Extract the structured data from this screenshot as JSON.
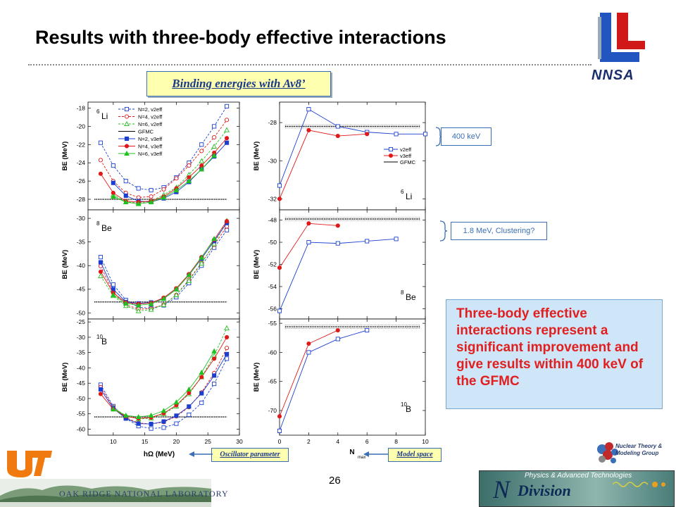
{
  "slide": {
    "title": "Results with three-body effective interactions",
    "page_number": "26",
    "binding_label": "Binding energies with Av8’",
    "osc_label": "Oscillator parameter",
    "model_label": "Model space",
    "note_400": "400 keV",
    "note_clustering": "1.8 MeV, Clustering?",
    "summary": "Three-body effective interactions represent a significant improvement and give results within 400 keV of the GFMC"
  },
  "logos": {
    "nnsa": "NNSA",
    "ornl": "OAK RIDGE NATIONAL LABORATORY",
    "ntmg": "Nuclear Theory & Modeling Group",
    "ndiv_top": "Physics & Advanced Technologies",
    "ndiv_n": "N",
    "ndiv_word": "Division"
  },
  "left_axis": {
    "xlabel": "hΩ (MeV)",
    "xticks": [
      "10",
      "15",
      "20",
      "25",
      "30"
    ]
  },
  "right_axis": {
    "xlabel": "N",
    "xlabel_sub": "max",
    "xticks": [
      "0",
      "2",
      "4",
      "6",
      "8",
      "10"
    ]
  },
  "legend_left": [
    "N=2, v2eff",
    "N=4, v2eff",
    "N=6, v2eff",
    "GFMC",
    "N=2, v3eff",
    "N=4, v3eff",
    "N=6, v3eff"
  ],
  "legend_right": [
    "v2eff",
    "v3eff",
    "GFMC"
  ],
  "colors": {
    "blue": "#1a3fd0",
    "red": "#e01818",
    "green": "#20c020",
    "summary_text": "#e02020"
  },
  "chart_data": [
    {
      "type": "line",
      "nucleus": "6Li",
      "ylabel": "BE (MeV)",
      "xlabel": "hΩ (MeV)",
      "xlim": [
        6,
        30
      ],
      "ylim": [
        -29,
        -17.5
      ],
      "yticks": [
        -18,
        -20,
        -22,
        -24,
        -26,
        -28
      ],
      "gfmc": -28,
      "series": [
        {
          "name": "N=2, v2eff",
          "color": "#1a3fd0",
          "dash": true,
          "marker": "open-square",
          "x": [
            8,
            10,
            12,
            14,
            16,
            18,
            20,
            22,
            24,
            26,
            28
          ],
          "y": [
            -21.8,
            -24.3,
            -26,
            -26.8,
            -27,
            -26.7,
            -25.6,
            -24,
            -22,
            -20,
            -17.8
          ]
        },
        {
          "name": "N=4, v2eff",
          "color": "#e01818",
          "dash": true,
          "marker": "open-circle",
          "x": [
            8,
            10,
            12,
            14,
            16,
            18,
            20,
            22,
            24,
            26,
            28
          ],
          "y": [
            -23.7,
            -26,
            -27.3,
            -27.8,
            -27.7,
            -26.9,
            -25.7,
            -24.3,
            -22.7,
            -21.2,
            -19.3
          ]
        },
        {
          "name": "N=6, v2eff",
          "color": "#20c020",
          "dash": true,
          "marker": "open-triangle",
          "x": [
            10,
            12,
            14,
            16,
            18,
            20,
            22,
            24,
            26,
            28
          ],
          "y": [
            -27.5,
            -28.3,
            -28.4,
            -28.2,
            -27.5,
            -26.7,
            -25.3,
            -23.8,
            -22.2,
            -20.4
          ]
        },
        {
          "name": "N=2, v3eff",
          "color": "#1a3fd0",
          "dash": false,
          "marker": "filled-square",
          "x": [
            10,
            12,
            14,
            16,
            18,
            20,
            22,
            24,
            26,
            28
          ],
          "y": [
            -26.2,
            -27.6,
            -28.2,
            -28.3,
            -27.9,
            -27.2,
            -26.1,
            -24.7,
            -23.3,
            -21.8
          ]
        },
        {
          "name": "N=4, v3eff",
          "color": "#e01818",
          "dash": false,
          "marker": "filled-circle",
          "x": [
            8,
            10,
            12,
            14,
            16,
            18,
            20,
            22,
            24,
            26,
            28
          ],
          "y": [
            -25.2,
            -27.3,
            -28.2,
            -28.3,
            -28.2,
            -27.7,
            -26.8,
            -25.6,
            -24.3,
            -22.9,
            -21.3
          ]
        },
        {
          "name": "N=6, v3eff",
          "color": "#20c020",
          "dash": false,
          "marker": "filled-triangle",
          "x": [
            10,
            12,
            14,
            16,
            18,
            20,
            22,
            24,
            26
          ],
          "y": [
            -27.7,
            -28.3,
            -28.5,
            -28.3,
            -27.8,
            -27,
            -26,
            -24.7,
            -23.2
          ]
        }
      ]
    },
    {
      "type": "line",
      "nucleus": "8Be",
      "ylabel": "BE (MeV)",
      "xlabel": "hΩ (MeV)",
      "xlim": [
        6,
        30
      ],
      "ylim": [
        -51,
        -28.5
      ],
      "yticks": [
        -30,
        -35,
        -40,
        -45,
        -50
      ],
      "gfmc": -47.7,
      "series": [
        {
          "name": "N=2, v2eff",
          "color": "#1a3fd0",
          "dash": true,
          "marker": "open-square",
          "x": [
            8,
            10,
            12,
            14,
            16,
            18,
            20,
            22,
            24,
            26,
            28
          ],
          "y": [
            -38.2,
            -44,
            -47.3,
            -48.8,
            -49,
            -48.4,
            -46.7,
            -43.7,
            -40,
            -36.2,
            -32.5
          ]
        },
        {
          "name": "N=4, v2eff",
          "color": "#e01818",
          "dash": true,
          "marker": "open-circle",
          "x": [
            8,
            10,
            12,
            14,
            16,
            18,
            20,
            22,
            24,
            26,
            28
          ],
          "y": [
            -40.1,
            -45.6,
            -48.3,
            -49.2,
            -49.1,
            -48.3,
            -46.2,
            -43,
            -39.4,
            -35.6,
            -31.7
          ]
        },
        {
          "name": "N=6, v2eff",
          "color": "#20c020",
          "dash": true,
          "marker": "open-triangle",
          "x": [
            8,
            10,
            12,
            14,
            16,
            18,
            20,
            22,
            24,
            26,
            28
          ],
          "y": [
            -42.2,
            -46.4,
            -48.5,
            -49.6,
            -49.3,
            -48.3,
            -46.2,
            -43.2,
            -39.5,
            -35.4,
            -30.5
          ]
        },
        {
          "name": "N=2, v3eff",
          "color": "#1a3fd0",
          "dash": false,
          "marker": "filled-square",
          "x": [
            8,
            10,
            12,
            14,
            16,
            18,
            20,
            22,
            24,
            26,
            28
          ],
          "y": [
            -39.3,
            -45,
            -47.7,
            -48,
            -47.8,
            -47,
            -45,
            -42,
            -38.5,
            -34.8,
            -31
          ]
        },
        {
          "name": "N=4, v3eff",
          "color": "#e01818",
          "dash": false,
          "marker": "filled-circle",
          "x": [
            8,
            10,
            12,
            14,
            16,
            18,
            20,
            22,
            24,
            26,
            28
          ],
          "y": [
            -41.3,
            -45.8,
            -47.8,
            -48.1,
            -47.9,
            -46.8,
            -44.8,
            -41.8,
            -38.2,
            -34.5,
            -30.6
          ]
        },
        {
          "name": "N=6, v3eff",
          "color": "#20c020",
          "dash": false,
          "marker": "filled-triangle",
          "x": [
            10,
            12,
            14,
            16,
            18,
            20,
            22,
            24,
            26
          ],
          "y": [
            -46.2,
            -48,
            -48.4,
            -48.1,
            -47,
            -45,
            -42,
            -38.3,
            -34.3
          ]
        }
      ]
    },
    {
      "type": "line",
      "nucleus": "10B",
      "ylabel": "BE (MeV)",
      "xlabel": "hΩ (MeV)",
      "xlim": [
        6,
        30
      ],
      "ylim": [
        -61.5,
        -24.5
      ],
      "yticks": [
        -25,
        -30,
        -35,
        -40,
        -45,
        -50,
        -55,
        -60
      ],
      "gfmc": -56,
      "series": [
        {
          "name": "N=2, v2eff",
          "color": "#1a3fd0",
          "dash": true,
          "marker": "open-square",
          "x": [
            8,
            10,
            12,
            14,
            16,
            18,
            20,
            22,
            24,
            26,
            28
          ],
          "y": [
            -45.5,
            -52.5,
            -56.5,
            -59,
            -59.8,
            -59.5,
            -58.2,
            -55.3,
            -51.4,
            -45.2,
            -37
          ]
        },
        {
          "name": "N=4, v2eff",
          "color": "#e01818",
          "dash": true,
          "marker": "open-circle",
          "x": [
            8,
            10,
            12,
            14,
            16,
            18,
            20,
            22,
            24,
            26,
            28
          ],
          "y": [
            -46.3,
            -52.8,
            -56.2,
            -58,
            -58.3,
            -57.7,
            -55.8,
            -52.8,
            -48,
            -41.7,
            -33.5
          ]
        },
        {
          "name": "N=6, v2eff",
          "color": "#20c020",
          "dash": true,
          "marker": "open-triangle",
          "x": [
            10,
            12,
            14,
            16,
            18,
            20,
            22,
            24,
            26,
            28
          ],
          "y": [
            -53,
            -55.6,
            -56.7,
            -56.4,
            -55,
            -52.5,
            -48.5,
            -43,
            -36,
            -27
          ]
        },
        {
          "name": "N=2, v3eff",
          "color": "#1a3fd0",
          "dash": false,
          "marker": "filled-square",
          "x": [
            8,
            10,
            12,
            14,
            16,
            18,
            20,
            22,
            24,
            26,
            28
          ],
          "y": [
            -47,
            -53.2,
            -56.5,
            -58.2,
            -58.3,
            -57.5,
            -55.6,
            -52.6,
            -48.3,
            -42.5,
            -35.5
          ]
        },
        {
          "name": "N=4, v3eff",
          "color": "#e01818",
          "dash": false,
          "marker": "filled-circle",
          "x": [
            8,
            10,
            12,
            14,
            16,
            18,
            20,
            22,
            24,
            26,
            28
          ],
          "y": [
            -48.5,
            -53.5,
            -55.8,
            -56.5,
            -56.2,
            -54.8,
            -52.2,
            -48.2,
            -43,
            -37,
            -30
          ]
        },
        {
          "name": "N=6, v3eff",
          "color": "#20c020",
          "dash": false,
          "marker": "filled-triangle",
          "x": [
            10,
            12,
            14,
            16,
            18,
            20,
            22,
            24,
            26
          ],
          "y": [
            -53.5,
            -55.5,
            -56,
            -55.5,
            -54,
            -51.2,
            -47,
            -41.5,
            -34.5
          ]
        }
      ]
    },
    {
      "type": "line",
      "nucleus": "6Li",
      "ylabel": "BE (MeV)",
      "xlabel": "Nmax",
      "xlim": [
        0,
        10
      ],
      "ylim": [
        -32.5,
        -27
      ],
      "yticks": [
        -28,
        -30,
        -32
      ],
      "gfmc": -28.2,
      "series": [
        {
          "name": "v2eff",
          "color": "#1a3fd0",
          "marker": "open-square",
          "x": [
            0,
            2,
            4,
            6,
            8,
            10
          ],
          "y": [
            -31.3,
            -27.3,
            -28.2,
            -28.5,
            -28.6,
            -28.6
          ]
        },
        {
          "name": "v3eff",
          "color": "#e01818",
          "marker": "filled-circle",
          "x": [
            0,
            2,
            4,
            6
          ],
          "y": [
            -32,
            -28.4,
            -28.7,
            -28.6
          ]
        }
      ]
    },
    {
      "type": "line",
      "nucleus": "8Be",
      "ylabel": "BE (MeV)",
      "xlabel": "Nmax",
      "xlim": [
        0,
        10
      ],
      "ylim": [
        -56.8,
        -47.2
      ],
      "yticks": [
        -48,
        -50,
        -52,
        -54,
        -56
      ],
      "gfmc": -47.9,
      "series": [
        {
          "name": "v2eff",
          "color": "#1a3fd0",
          "marker": "open-square",
          "x": [
            0,
            2,
            4,
            6,
            8
          ],
          "y": [
            -56.2,
            -50,
            -50.1,
            -49.9,
            -49.7
          ]
        },
        {
          "name": "v3eff",
          "color": "#e01818",
          "marker": "filled-circle",
          "x": [
            0,
            2,
            4
          ],
          "y": [
            -52.3,
            -48.3,
            -48.5
          ]
        }
      ]
    },
    {
      "type": "line",
      "nucleus": "10B",
      "ylabel": "BE (MeV)",
      "xlabel": "Nmax",
      "xlim": [
        0,
        10
      ],
      "ylim": [
        -74,
        -54.5
      ],
      "yticks": [
        -55,
        -60,
        -65,
        -70
      ],
      "gfmc": -55.6,
      "series": [
        {
          "name": "v2eff",
          "color": "#1a3fd0",
          "marker": "open-square",
          "x": [
            0,
            2,
            4,
            6
          ],
          "y": [
            -73.5,
            -60,
            -57.7,
            -56.2
          ]
        },
        {
          "name": "v3eff",
          "color": "#e01818",
          "marker": "filled-circle",
          "x": [
            0,
            2,
            4
          ],
          "y": [
            -71,
            -58.5,
            -56.2
          ]
        }
      ]
    }
  ]
}
